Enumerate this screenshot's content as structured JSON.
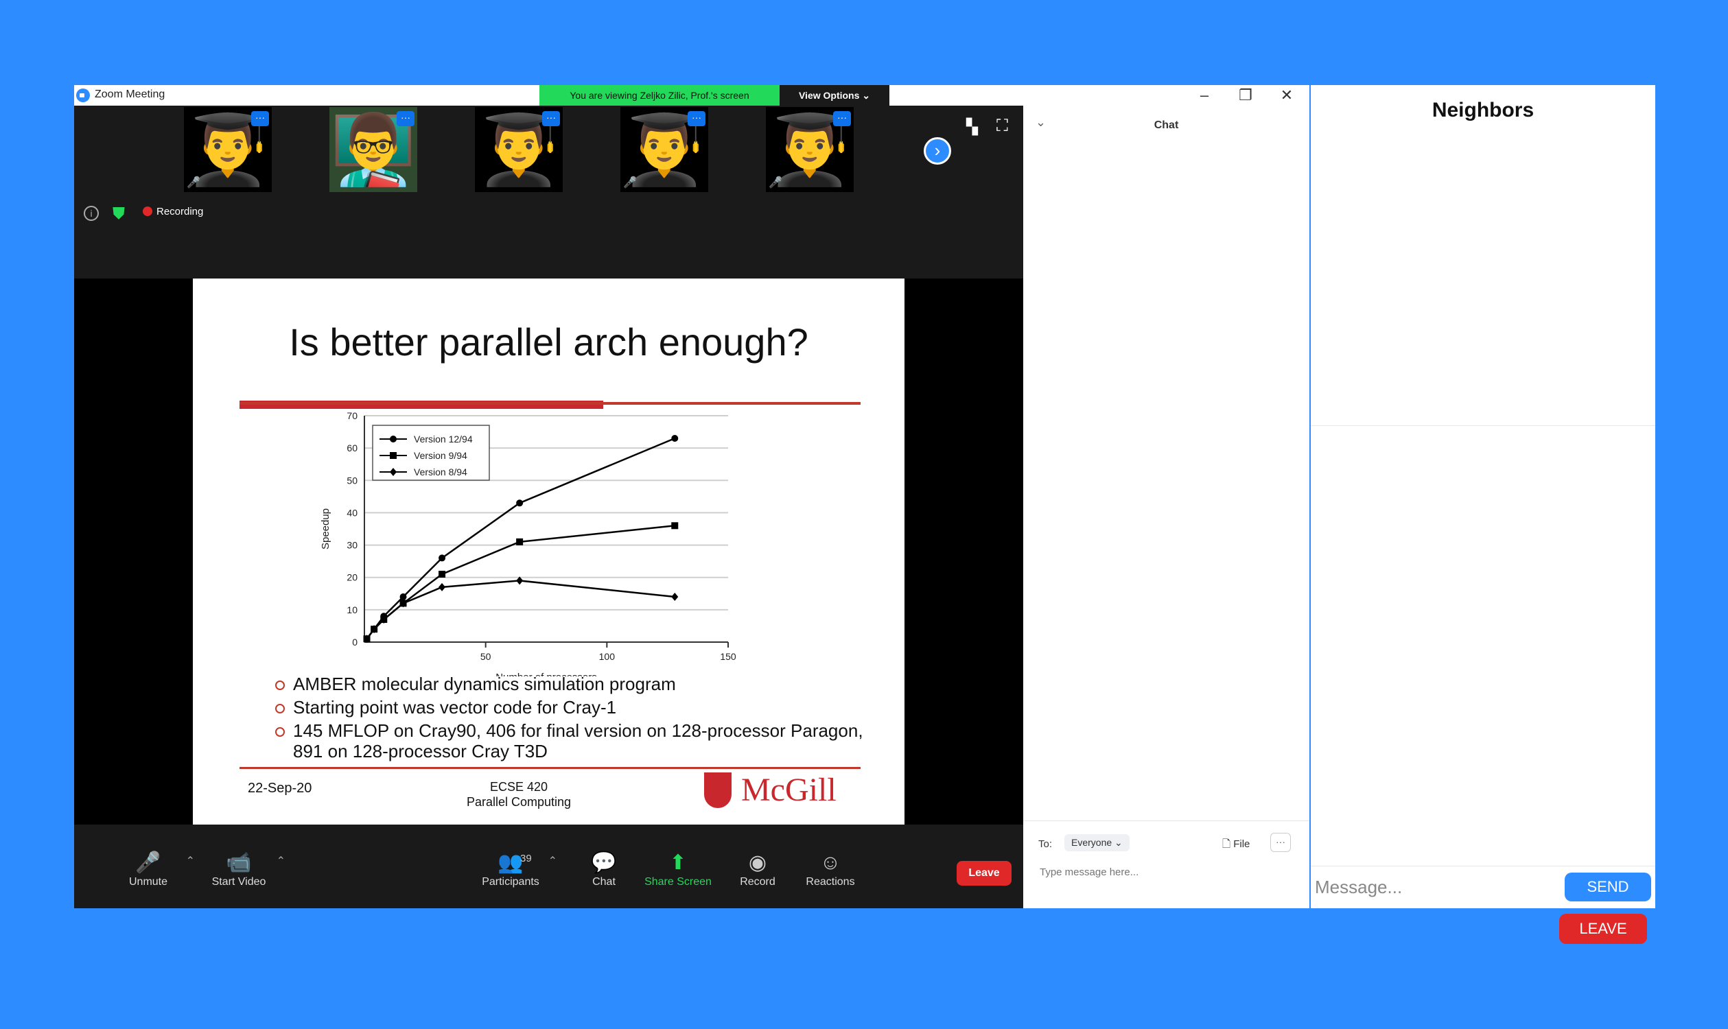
{
  "window": {
    "title": "Zoom Meeting",
    "viewing_banner": "You are viewing Zeljko Zilic, Prof.'s screen",
    "view_options": "View Options ⌄",
    "minimize": "–",
    "restore": "❐",
    "close": "✕"
  },
  "thumbnails": [
    {
      "emoji": "👨‍🎓"
    },
    {
      "emoji": "👨‍🏫"
    },
    {
      "emoji": "👨‍🎓"
    },
    {
      "emoji": "👨‍🎓"
    },
    {
      "emoji": "👨‍🎓"
    }
  ],
  "status": {
    "recording": "Recording"
  },
  "slide": {
    "title": "Is better parallel arch enough?",
    "bullets": [
      "AMBER molecular dynamics simulation program",
      "Starting point was vector code for Cray-1",
      "145 MFLOP on Cray90, 406 for final version on 128-processor Paragon, 891 on 128-processor Cray T3D"
    ],
    "date": "22-Sep-20",
    "course_code": "ECSE 420",
    "course_name": "Parallel Computing",
    "logo_text": "McGill"
  },
  "chart_data": {
    "type": "line",
    "xlabel": "Number of processors",
    "ylabel": "Speedup",
    "xlim": [
      0,
      150
    ],
    "ylim": [
      0,
      70
    ],
    "xticks": [
      50,
      100,
      150
    ],
    "yticks": [
      0,
      10,
      20,
      30,
      40,
      50,
      60,
      70
    ],
    "grid": true,
    "legend_position": "top-left",
    "series": [
      {
        "name": "Version 12/94",
        "marker": "circle",
        "x": [
          1,
          4,
          8,
          16,
          32,
          64,
          128
        ],
        "y": [
          1,
          4,
          8,
          14,
          26,
          43,
          63
        ]
      },
      {
        "name": "Version 9/94",
        "marker": "square",
        "x": [
          1,
          4,
          8,
          16,
          32,
          64,
          128
        ],
        "y": [
          1,
          4,
          7,
          12,
          21,
          31,
          36
        ]
      },
      {
        "name": "Version 8/94",
        "marker": "diamond",
        "x": [
          1,
          4,
          8,
          16,
          32,
          64,
          128
        ],
        "y": [
          1,
          4,
          7,
          12,
          17,
          19,
          14
        ]
      }
    ]
  },
  "toolbar": {
    "unmute": "Unmute",
    "start_video": "Start Video",
    "participants": "Participants",
    "participants_count": "39",
    "chat": "Chat",
    "share_screen": "Share Screen",
    "record": "Record",
    "reactions": "Reactions",
    "leave": "Leave"
  },
  "chat": {
    "title": "Chat",
    "to_label": "To:",
    "recipient": "Everyone ⌄",
    "file_label": "File",
    "input_placeholder": "Type message here..."
  },
  "neighbors": {
    "title": "Neighbors",
    "message_placeholder": "Message...",
    "send_label": "SEND",
    "leave_label": "LEAVE"
  }
}
